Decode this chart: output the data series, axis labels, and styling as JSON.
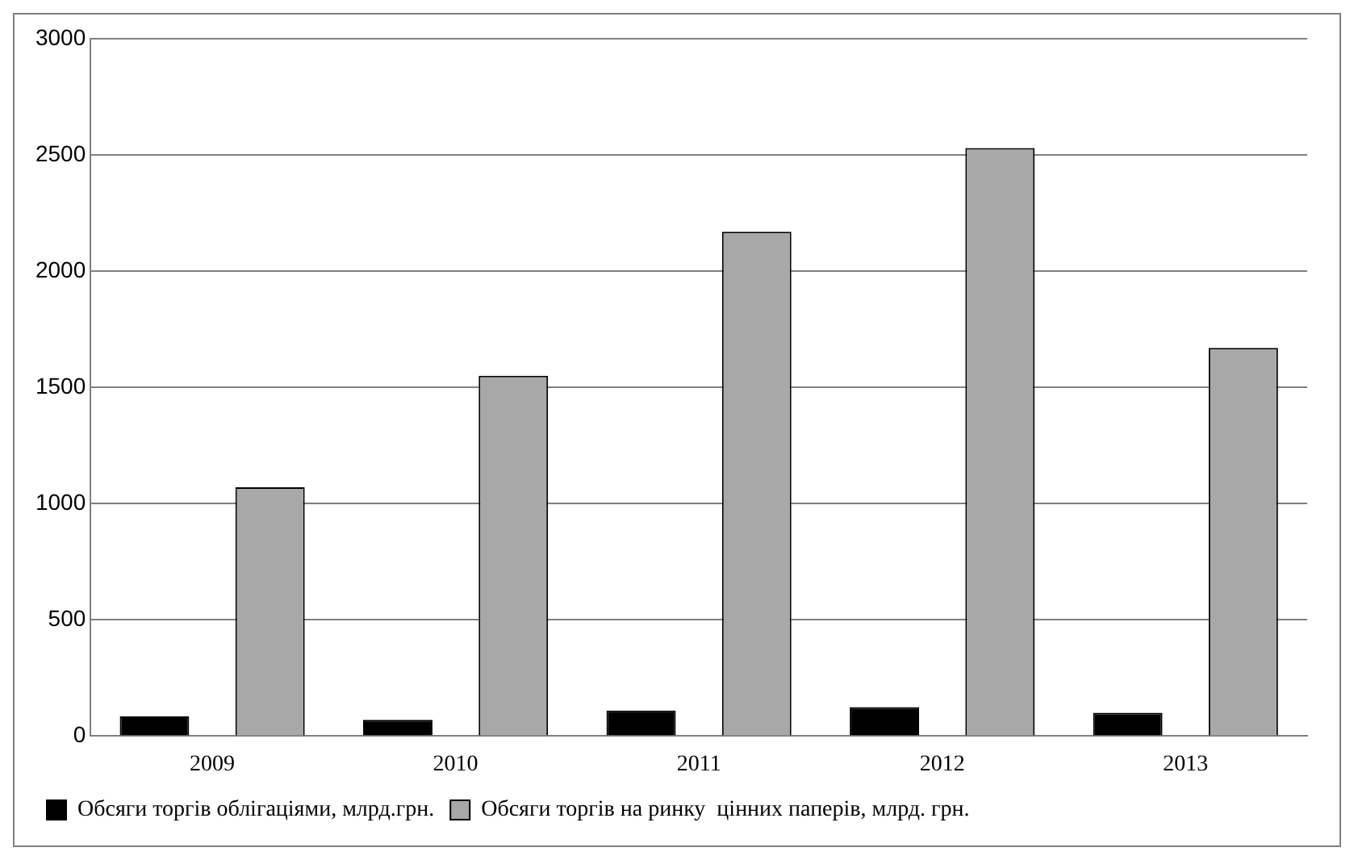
{
  "chart_data": {
    "type": "bar",
    "categories": [
      "2009",
      "2010",
      "2011",
      "2012",
      "2013"
    ],
    "series": [
      {
        "name": "Обсяги торгів облігаціями, млрд.грн.",
        "color": "#000000",
        "values": [
          85,
          70,
          110,
          125,
          100
        ]
      },
      {
        "name": "Обсяги торгів на ринку  цінних паперів, млрд. грн.",
        "color": "#a8a8a8",
        "values": [
          1070,
          1550,
          2170,
          2530,
          1670
        ]
      }
    ],
    "ylim": [
      0,
      3000
    ],
    "yticks": [
      0,
      500,
      1000,
      1500,
      2000,
      2500,
      3000
    ],
    "grid": "y",
    "legend": "bottom"
  }
}
